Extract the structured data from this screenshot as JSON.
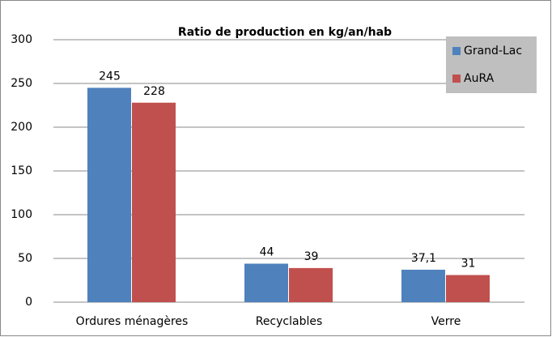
{
  "chart_data": {
    "type": "bar",
    "title": "Ratio de production en kg/an/hab",
    "categories": [
      "Ordures ménagères",
      "Recyclables",
      "Verre"
    ],
    "series": [
      {
        "name": "Grand-Lac",
        "color": "#4f81bd",
        "values": [
          245,
          44,
          37.1
        ],
        "value_labels": [
          "245",
          "44",
          "37,1"
        ]
      },
      {
        "name": "AuRA",
        "color": "#c0504d",
        "values": [
          228,
          39,
          31
        ],
        "value_labels": [
          "228",
          "39",
          "31"
        ]
      }
    ],
    "ylim": [
      0,
      300
    ],
    "yticks": [
      0,
      50,
      100,
      150,
      200,
      250,
      300
    ],
    "grid": true,
    "legend": "top-right"
  }
}
